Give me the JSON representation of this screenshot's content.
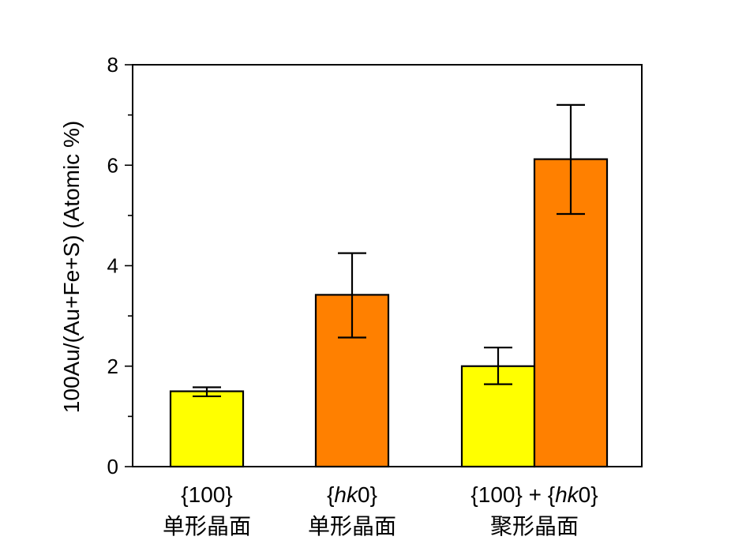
{
  "chart_data": {
    "type": "bar",
    "ylabel": "100Au/(Au+Fe+S) (Atomic %)",
    "ylim": [
      0,
      8
    ],
    "yticks": [
      0,
      2,
      4,
      6,
      8
    ],
    "categories": [
      {
        "label_parts": [
          {
            "text": "{100}",
            "italic": false
          }
        ],
        "sublabel": "单形晶面"
      },
      {
        "label_parts": [
          {
            "text": "{",
            "italic": false
          },
          {
            "text": "hk",
            "italic": true
          },
          {
            "text": "0}",
            "italic": false
          }
        ],
        "sublabel": "单形晶面"
      },
      {
        "label_parts": [
          {
            "text": "{100} + {",
            "italic": false
          },
          {
            "text": "hk",
            "italic": true
          },
          {
            "text": "0}",
            "italic": false
          }
        ],
        "sublabel": "聚形晶面"
      }
    ],
    "bars": [
      {
        "category_index": 0,
        "slot": "center",
        "value": 1.5,
        "err_low": 1.4,
        "err_high": 1.58,
        "color": "#FFFF00"
      },
      {
        "category_index": 1,
        "slot": "center",
        "value": 3.42,
        "err_low": 2.57,
        "err_high": 4.25,
        "color": "#FF8000"
      },
      {
        "category_index": 2,
        "slot": "left",
        "value": 2.0,
        "err_low": 1.64,
        "err_high": 2.37,
        "color": "#FFFF00"
      },
      {
        "category_index": 2,
        "slot": "right",
        "value": 6.12,
        "err_low": 5.03,
        "err_high": 7.2,
        "color": "#FF8000"
      }
    ],
    "colors": {
      "yellow": "#FFFF00",
      "orange": "#FF8000",
      "axis": "#000000"
    }
  }
}
